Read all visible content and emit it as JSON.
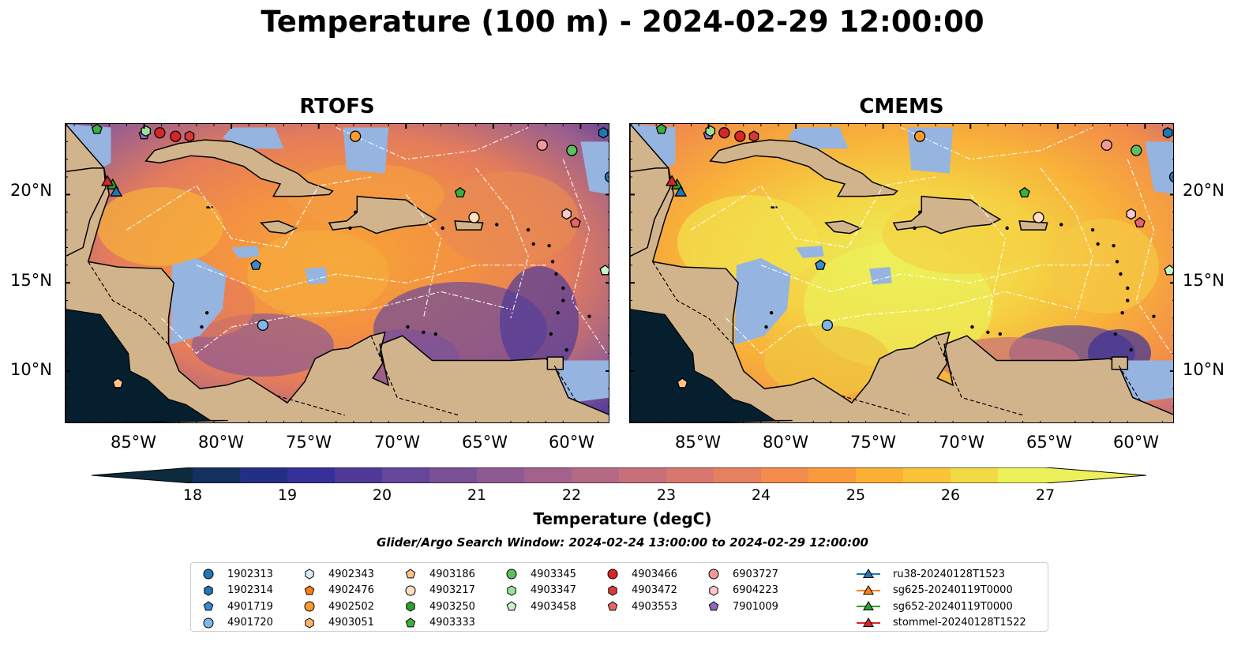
{
  "title": "Temperature (100 m) - 2024-02-29 12:00:00",
  "panels": [
    {
      "title": "RTOFS",
      "model": "rtofs"
    },
    {
      "title": "CMEMS",
      "model": "cmems"
    }
  ],
  "lat_ticks": [
    "20°N",
    "15°N",
    "10°N"
  ],
  "lon_ticks": [
    "85°W",
    "80°W",
    "75°W",
    "70°W",
    "65°W",
    "60°W"
  ],
  "colorbar": {
    "label": "Temperature (degC)",
    "ticks": [
      "18",
      "19",
      "20",
      "21",
      "22",
      "23",
      "24",
      "25",
      "26",
      "27"
    ],
    "min": 18,
    "max": 27,
    "colormap": "thermal",
    "extend": "both"
  },
  "search_window": "Glider/Argo Search Window: 2024-02-24 13:00:00 to 2024-02-29 12:00:00",
  "colors": {
    "land": "#d2b48c",
    "shallow": "#96b4e0",
    "deep": "#061f2e",
    "coast": "#000000"
  },
  "legend": [
    {
      "label": "1902313",
      "marker": "circle",
      "color": "#1f77b4"
    },
    {
      "label": "1902314",
      "marker": "hexagon",
      "color": "#1f77b4"
    },
    {
      "label": "4901719",
      "marker": "pentagon",
      "color": "#3a8ad0"
    },
    {
      "label": "4901720",
      "marker": "circle",
      "color": "#7fb8e4"
    },
    {
      "label": "4902343",
      "marker": "hexagon",
      "color": "#d8e8f6"
    },
    {
      "label": "4902476",
      "marker": "pentagon",
      "color": "#ff7f0e"
    },
    {
      "label": "4902502",
      "marker": "circle",
      "color": "#ff9a2e"
    },
    {
      "label": "4903051",
      "marker": "hexagon",
      "color": "#ffb26e"
    },
    {
      "label": "4903186",
      "marker": "pentagon",
      "color": "#ffc48a"
    },
    {
      "label": "4903217",
      "marker": "circle",
      "color": "#ffe0c2"
    },
    {
      "label": "4903250",
      "marker": "hexagon",
      "color": "#2ca02c"
    },
    {
      "label": "4903333",
      "marker": "pentagon",
      "color": "#3cb03c"
    },
    {
      "label": "4903345",
      "marker": "circle",
      "color": "#5cc05c"
    },
    {
      "label": "4903347",
      "marker": "hexagon",
      "color": "#98e398"
    },
    {
      "label": "4903458",
      "marker": "pentagon",
      "color": "#c8f3c8"
    },
    {
      "label": "4903466",
      "marker": "circle",
      "color": "#d62728"
    },
    {
      "label": "4903472",
      "marker": "hexagon",
      "color": "#d83a3a"
    },
    {
      "label": "4903553",
      "marker": "pentagon",
      "color": "#e8646a"
    },
    {
      "label": "6903727",
      "marker": "circle",
      "color": "#f29a9a"
    },
    {
      "label": "6904223",
      "marker": "hexagon",
      "color": "#fbc9c9"
    },
    {
      "label": "7901009",
      "marker": "pentagon",
      "color": "#9467bd"
    },
    {
      "label": "ru38-20240128T1523",
      "marker": "triangle-line",
      "color": "#1f77b4"
    },
    {
      "label": "sg625-20240119T0000",
      "marker": "triangle-line",
      "color": "#ff7f0e"
    },
    {
      "label": "sg652-20240119T0000",
      "marker": "triangle-line",
      "color": "#2ca02c"
    },
    {
      "label": "stommel-20240128T1522",
      "marker": "triangle-line",
      "color": "#d62728"
    }
  ]
}
